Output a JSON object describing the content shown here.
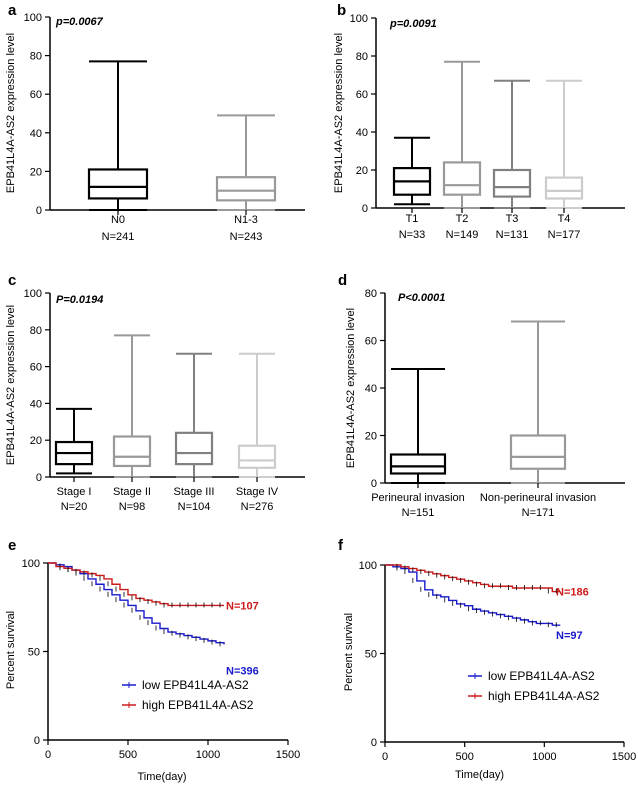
{
  "chart_data": [
    {
      "panel": "a",
      "type": "box",
      "ylabel": "EPB41L4A-AS2 expression level",
      "ylim": [
        0,
        100
      ],
      "yticks": [
        0,
        20,
        40,
        60,
        80,
        100
      ],
      "pvalue": "p=0.0067",
      "categories": [
        {
          "name": "N0",
          "n": "N=241",
          "min": 0,
          "q1": 6,
          "median": 12,
          "q3": 21,
          "max": 77,
          "color": "#000000"
        },
        {
          "name": "N1-3",
          "n": "N=243",
          "min": 0,
          "q1": 5,
          "median": 10,
          "q3": 17,
          "max": 49,
          "color": "#999999"
        }
      ]
    },
    {
      "panel": "b",
      "type": "box",
      "ylabel": "EPB41L4A-AS2 expression level",
      "ylim": [
        0,
        100
      ],
      "yticks": [
        0,
        20,
        40,
        60,
        80,
        100
      ],
      "pvalue": "p=0.0091",
      "categories": [
        {
          "name": "T1",
          "n": "N=33",
          "min": 2,
          "q1": 7,
          "median": 14,
          "q3": 21,
          "max": 37,
          "color": "#000000"
        },
        {
          "name": "T2",
          "n": "N=149",
          "min": 0,
          "q1": 7,
          "median": 12,
          "q3": 24,
          "max": 77,
          "color": "#999999"
        },
        {
          "name": "T3",
          "n": "N=131",
          "min": 0,
          "q1": 6,
          "median": 11,
          "q3": 20,
          "max": 67,
          "color": "#808080"
        },
        {
          "name": "T4",
          "n": "N=177",
          "min": 0,
          "q1": 5,
          "median": 9,
          "q3": 16,
          "max": 67,
          "color": "#cccccc"
        }
      ]
    },
    {
      "panel": "c",
      "type": "box",
      "ylabel": "EPB41L4A-AS2 expression level",
      "ylim": [
        0,
        100
      ],
      "yticks": [
        0,
        20,
        40,
        60,
        80,
        100
      ],
      "pvalue": "P=0.0194",
      "categories": [
        {
          "name": "Stage I",
          "n": "N=20",
          "min": 2,
          "q1": 7,
          "median": 13,
          "q3": 19,
          "max": 37,
          "color": "#000000"
        },
        {
          "name": "Stage II",
          "n": "N=98",
          "min": 0,
          "q1": 6,
          "median": 11,
          "q3": 22,
          "max": 77,
          "color": "#999999"
        },
        {
          "name": "Stage III",
          "n": "N=104",
          "min": 0,
          "q1": 7,
          "median": 13,
          "q3": 24,
          "max": 67,
          "color": "#808080"
        },
        {
          "name": "Stage IV",
          "n": "N=276",
          "min": 0,
          "q1": 5,
          "median": 9,
          "q3": 17,
          "max": 67,
          "color": "#cccccc"
        }
      ]
    },
    {
      "panel": "d",
      "type": "box",
      "ylabel": "EPB41L4A-AS2 expression level",
      "ylim": [
        0,
        80
      ],
      "yticks": [
        0,
        20,
        40,
        60,
        80
      ],
      "pvalue": "P<0.0001",
      "categories": [
        {
          "name": "Perineural invasion",
          "n": "N=151",
          "min": 0,
          "q1": 4,
          "median": 7,
          "q3": 12,
          "max": 48,
          "color": "#000000"
        },
        {
          "name": "Non-perineural invasion",
          "n": "N=171",
          "min": 0,
          "q1": 6,
          "median": 11,
          "q3": 20,
          "max": 68,
          "color": "#999999"
        }
      ]
    },
    {
      "panel": "e",
      "type": "survival",
      "ylabel": "Percent survival",
      "xlabel": "Time(day)",
      "xlim": [
        0,
        1500
      ],
      "ylim": [
        0,
        100
      ],
      "xticks": [
        0,
        500,
        1000,
        1500
      ],
      "yticks": [
        0,
        50,
        100
      ],
      "series": [
        {
          "name": "low EPB41L4A-AS2",
          "color": "#1a1acc",
          "n_label": "N=396",
          "x": [
            0,
            50,
            100,
            150,
            200,
            250,
            300,
            350,
            400,
            450,
            500,
            550,
            600,
            650,
            700,
            750,
            800,
            850,
            900,
            950,
            1000,
            1050,
            1100
          ],
          "y": [
            100,
            99,
            98,
            96,
            94,
            91,
            88,
            85,
            82,
            79,
            76,
            73,
            69,
            66,
            63,
            61,
            60,
            59,
            58,
            57,
            56,
            55,
            54
          ]
        },
        {
          "name": "high EPB41L4A-AS2",
          "color": "#cc1a1a",
          "n_label": "N=107",
          "x": [
            0,
            50,
            100,
            150,
            200,
            250,
            300,
            350,
            400,
            450,
            500,
            550,
            600,
            650,
            700,
            750,
            800,
            850,
            900,
            950,
            1000,
            1050,
            1100
          ],
          "y": [
            100,
            98,
            97,
            96,
            95,
            94,
            93,
            91,
            88,
            85,
            82,
            80,
            79,
            78,
            77,
            76,
            76,
            76,
            76,
            76,
            76,
            76,
            76
          ]
        }
      ]
    },
    {
      "panel": "f",
      "type": "survival",
      "ylabel": "Percent survival",
      "xlabel": "Time(day)",
      "xlim": [
        0,
        1500
      ],
      "ylim": [
        0,
        100
      ],
      "xticks": [
        0,
        500,
        1000,
        1500
      ],
      "yticks": [
        0,
        50,
        100
      ],
      "series": [
        {
          "name": "low EPB41L4A-AS2",
          "color": "#1a1acc",
          "n_label": "N=97",
          "x": [
            0,
            50,
            100,
            150,
            200,
            250,
            300,
            350,
            400,
            450,
            500,
            550,
            600,
            650,
            700,
            750,
            800,
            850,
            900,
            950,
            1000,
            1050,
            1100
          ],
          "y": [
            100,
            99,
            98,
            96,
            91,
            86,
            83,
            82,
            80,
            78,
            77,
            75,
            74,
            73,
            72,
            71,
            70,
            69,
            68,
            67,
            67,
            66,
            66
          ]
        },
        {
          "name": "high EPB41L4A-AS2",
          "color": "#cc1a1a",
          "n_label": "N=186",
          "x": [
            0,
            50,
            100,
            150,
            200,
            250,
            300,
            350,
            400,
            450,
            500,
            550,
            600,
            650,
            700,
            750,
            800,
            850,
            900,
            950,
            1000,
            1050,
            1100
          ],
          "y": [
            100,
            100,
            99,
            98,
            97,
            96,
            95,
            94,
            93,
            92,
            91,
            90,
            89,
            88,
            88,
            88,
            87,
            87,
            87,
            87,
            87,
            85,
            85
          ]
        }
      ]
    }
  ]
}
